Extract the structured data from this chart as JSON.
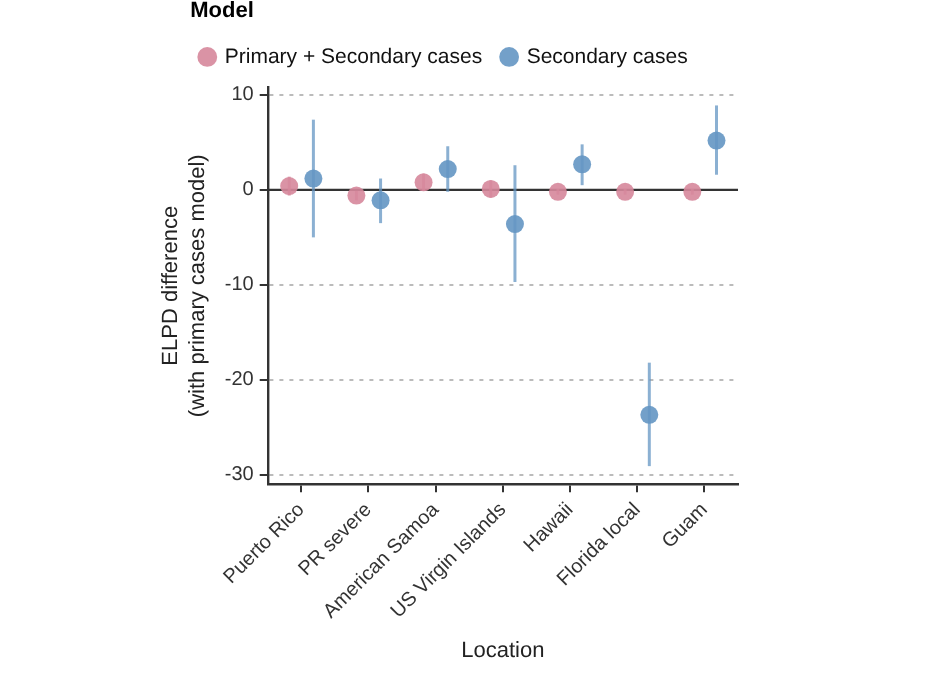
{
  "chart_data": {
    "type": "scatter",
    "xlabel": "Location",
    "ylabel": "ELPD difference\n(with primary cases model)",
    "legend_title": "Model",
    "categories": [
      "Puerto Rico",
      "PR severe",
      "American Samoa",
      "US Virgin Islands",
      "Hawaii",
      "Florida local",
      "Guam"
    ],
    "series": [
      {
        "name": "Primary + Secondary cases",
        "color": "#d6879b",
        "values": [
          0.4,
          -0.6,
          0.8,
          0.1,
          -0.2,
          -0.2,
          -0.2
        ],
        "errors": [
          1,
          0.5,
          0.9,
          0.9,
          0.3,
          0.3,
          0.3
        ]
      },
      {
        "name": "Secondary cases",
        "color": "#6496c3",
        "values": [
          1.2,
          -1.1,
          2.2,
          -3.6,
          2.7,
          -23.7,
          5.2
        ],
        "errors": [
          [
            -5.0,
            7.4
          ],
          [
            -3.5,
            1.2
          ],
          [
            -0.2,
            4.6
          ],
          [
            -9.7,
            2.6
          ],
          [
            0.5,
            4.8
          ],
          [
            -29.1,
            -18.2
          ],
          [
            1.6,
            8.9
          ]
        ]
      }
    ],
    "ylim": [
      -31,
      10.8
    ],
    "yticks": [
      -30,
      -20,
      -10,
      0,
      10
    ],
    "ref_lines": [
      {
        "axis": "y",
        "value": 0,
        "color": "#333333",
        "line_style": "solid"
      }
    ],
    "grid": "y",
    "legend": "top",
    "marker": "circle"
  }
}
